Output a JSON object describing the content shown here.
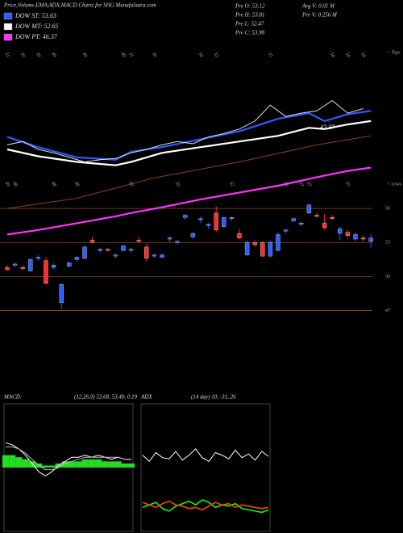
{
  "chart_data": [
    {
      "type": "candlestick",
      "title": "Price,Volume,EMA,ADX,MACD Charts for SHG MunafaSutra.com",
      "info_left": [
        "Pre O: 53.12",
        "Pre H: 53.81",
        "Pre L: 52.47",
        "Pre C: 53.98"
      ],
      "info_right": [
        "Avg V: 0.01 M",
        "Pre V: 0.256 M"
      ],
      "annotation": "42.37",
      "tops_label": "< Tops",
      "lows_label": "< Lows",
      "ylim": [
        45.9,
        70.1
      ],
      "yticks": [
        56,
        53,
        50,
        47
      ],
      "grid": true,
      "grid_color": "#8b4a2b",
      "up_color": "#2a5cff",
      "down_color": "#ff2a2a",
      "open": [
        50.8,
        51.0,
        50.8,
        50.5,
        51.6,
        51.4,
        50.8,
        47.7,
        50.9,
        51.5,
        51.6,
        53.2,
        52.3,
        52.4,
        51.8,
        52.3,
        52.3,
        53.2,
        52.6,
        51.8,
        51.7,
        53.3,
        53.0,
        55.2,
        53.5,
        55.0,
        54.5,
        55.6,
        54.4,
        55.1,
        53.8,
        51.9,
        53.0,
        53.0,
        51.8,
        52.3,
        54.0,
        54.9,
        54.6,
        55.6,
        55.4,
        54.7,
        55.2,
        53.8,
        53.9,
        53.3,
        53.4,
        53.1
      ],
      "high": [
        51.0,
        51.2,
        51.0,
        51.6,
        51.9,
        51.7,
        51.2,
        49.4,
        51.3,
        51.8,
        52.7,
        53.5,
        52.5,
        52.5,
        52.0,
        52.8,
        52.5,
        53.5,
        52.9,
        52.0,
        52.0,
        53.6,
        53.2,
        55.5,
        53.9,
        55.3,
        54.7,
        56.2,
        55.3,
        55.3,
        54.2,
        53.2,
        53.2,
        53.1,
        53.2,
        53.9,
        54.2,
        55.2,
        54.8,
        56.4,
        55.6,
        55.5,
        55.4,
        54.4,
        54.1,
        53.9,
        53.6,
        53.8
      ],
      "low": [
        50.5,
        50.8,
        50.5,
        50.4,
        51.4,
        49.3,
        50.6,
        47.1,
        50.8,
        51.3,
        51.5,
        52.9,
        52.1,
        52.2,
        51.6,
        52.2,
        52.1,
        52.9,
        51.3,
        51.6,
        51.6,
        53.0,
        52.8,
        55.0,
        53.3,
        54.7,
        54.2,
        53.9,
        54.3,
        54.9,
        53.3,
        51.8,
        52.6,
        51.7,
        51.7,
        52.2,
        53.8,
        54.8,
        54.4,
        55.5,
        55.2,
        54.1,
        55.0,
        53.2,
        53.4,
        53.1,
        53.1,
        52.5
      ],
      "close": [
        50.6,
        51.1,
        50.7,
        51.5,
        51.7,
        49.4,
        51.0,
        49.3,
        51.2,
        51.7,
        52.6,
        53.0,
        52.4,
        52.3,
        51.9,
        52.7,
        52.4,
        53.1,
        51.6,
        51.9,
        51.9,
        53.4,
        53.1,
        55.4,
        53.8,
        55.1,
        54.6,
        54.1,
        55.2,
        55.2,
        53.4,
        53.0,
        52.8,
        51.8,
        53.0,
        53.7,
        54.1,
        55.1,
        54.7,
        56.3,
        55.3,
        54.3,
        55.1,
        54.2,
        53.6,
        53.7,
        53.3,
        53.4
      ],
      "tops": [
        "51",
        null,
        "50",
        null,
        "50",
        null,
        "49",
        null,
        null,
        null,
        "49",
        null,
        null,
        null,
        null,
        "49",
        "51",
        null,
        null,
        "50",
        null,
        null,
        null,
        null,
        null,
        "50",
        null,
        "52",
        null,
        null,
        null,
        null,
        null,
        null,
        "51",
        null,
        null,
        null,
        null,
        null,
        null,
        null,
        "54",
        null,
        "54",
        null,
        "54",
        null
      ],
      "lows": [
        "49",
        "48",
        null,
        null,
        null,
        null,
        "48",
        null,
        null,
        "48",
        null,
        null,
        null,
        null,
        null,
        null,
        "50",
        null,
        null,
        null,
        null,
        null,
        "50",
        null,
        null,
        null,
        null,
        null,
        null,
        "52",
        null,
        null,
        null,
        null,
        null,
        null,
        "53",
        null,
        "53",
        "52",
        null,
        null,
        null,
        null,
        "55",
        null,
        null,
        null
      ],
      "series": [
        {
          "name": "DOW ST: 53.63",
          "color": "#2a5cff",
          "x": [
            0,
            4,
            9,
            14,
            16,
            20,
            25,
            30,
            35,
            39,
            41,
            44,
            47
          ],
          "values": [
            62.3,
            61.4,
            60.5,
            60.3,
            61.0,
            61.4,
            62.1,
            62.8,
            63.9,
            64.4,
            63.7,
            64.3,
            64.6
          ]
        },
        {
          "name": "DOW MT: 52.65",
          "color": "#ffffff",
          "x": [
            0,
            4,
            9,
            14,
            16,
            20,
            25,
            30,
            35,
            39,
            41,
            44,
            47
          ],
          "values": [
            61.2,
            60.6,
            60.1,
            59.8,
            60.1,
            60.9,
            61.4,
            61.9,
            62.4,
            63.1,
            63.0,
            63.4,
            63.7
          ]
        },
        {
          "name": "DOW PT: 46.37",
          "color": "#ff33ff",
          "x": [
            0,
            4,
            9,
            14,
            16,
            20,
            25,
            30,
            35,
            39,
            41,
            44,
            47
          ],
          "values": [
            53.7,
            54.1,
            54.7,
            55.3,
            55.6,
            56.1,
            56.8,
            57.4,
            58.0,
            58.6,
            58.9,
            59.3,
            59.6
          ]
        },
        {
          "color": "#8b4513",
          "x": [
            0,
            9,
            19,
            30,
            40,
            47
          ],
          "values": [
            56.0,
            56.9,
            58.7,
            60.1,
            61.6,
            62.4
          ]
        },
        {
          "color": "#dddddd",
          "x": [
            0,
            2,
            4,
            6,
            8,
            10,
            12,
            14,
            16,
            18,
            20,
            22,
            24,
            26,
            28,
            30,
            32,
            34,
            36,
            38,
            40,
            42,
            44,
            46
          ],
          "values": [
            61.6,
            61.9,
            61.2,
            60.9,
            60.5,
            60.1,
            60.3,
            60.4,
            60.9,
            61.2,
            61.6,
            61.9,
            61.7,
            62.3,
            62.6,
            63.0,
            63.7,
            65.1,
            64.1,
            64.4,
            64.6,
            65.5,
            64.4,
            64.8
          ]
        }
      ]
    },
    {
      "type": "macd",
      "title": "MACD:",
      "subtitle": "(12,26,9) 53.68, 53.49, 0.19",
      "ylim": [
        -3,
        3
      ],
      "series": [
        {
          "color": "#ffffff",
          "values": [
            1.2,
            1.1,
            0.9,
            0.6,
            0.2,
            -0.2,
            -0.4,
            -0.2,
            0.1,
            0.3,
            0.5,
            0.5,
            0.6,
            0.5,
            0.6,
            0.5,
            0.4,
            0.5,
            0.4,
            0.4
          ]
        },
        {
          "color": "#bbbbbb",
          "values": [
            1.0,
            1.0,
            0.9,
            0.7,
            0.4,
            0.1,
            -0.1,
            -0.1,
            0.0,
            0.2,
            0.3,
            0.4,
            0.5,
            0.5,
            0.5,
            0.5,
            0.5,
            0.5,
            0.4,
            0.4
          ]
        }
      ],
      "histogram": {
        "color": "#22dd22",
        "values": [
          0.6,
          0.6,
          0.5,
          0.4,
          0.3,
          0.2,
          0.1,
          0.1,
          0.2,
          0.3,
          0.3,
          0.3,
          0.4,
          0.4,
          0.4,
          0.3,
          0.3,
          0.3,
          0.2,
          0.2
        ]
      }
    },
    {
      "type": "adx",
      "title": "ADX",
      "subtitle": "(14 day) 10, -31, 26",
      "ylim": [
        0,
        100
      ],
      "series": [
        {
          "color": "#ffffff",
          "values": [
            60,
            55,
            62,
            58,
            57,
            63,
            56,
            60,
            65,
            58,
            55,
            62,
            60,
            57,
            64,
            58,
            61,
            56,
            63,
            59
          ]
        },
        {
          "color": "#00ff00",
          "values": [
            18,
            20,
            22,
            17,
            15,
            19,
            21,
            23,
            20,
            24,
            22,
            18,
            20,
            19,
            21,
            17,
            16,
            15,
            14,
            16
          ]
        },
        {
          "color": "#ff4400",
          "values": [
            22,
            20,
            18,
            21,
            23,
            20,
            19,
            17,
            18,
            16,
            19,
            22,
            20,
            21,
            18,
            20,
            19,
            18,
            17,
            18
          ]
        }
      ]
    }
  ]
}
